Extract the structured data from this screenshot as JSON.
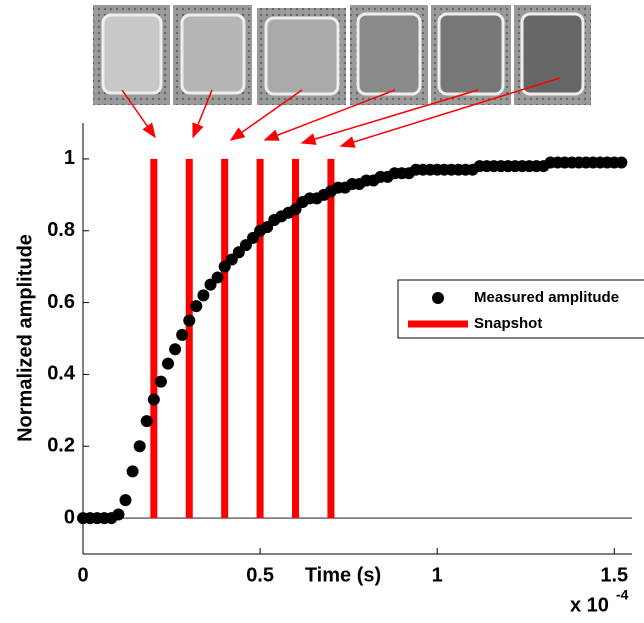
{
  "chart_data": {
    "type": "scatter",
    "ylabel": "Normalized amplitude",
    "xlabel": "Time (s)",
    "x_multiplier": "x 10",
    "x_multiplier_exp": "-4",
    "xlim": [
      0,
      1.55
    ],
    "ylim": [
      -0.1,
      1.1
    ],
    "xticks": [
      0,
      0.5,
      1,
      1.5
    ],
    "yticks": [
      0,
      0.2,
      0.4,
      0.6,
      0.8,
      1
    ],
    "legend": "right",
    "series": [
      {
        "name": "Measured amplitude",
        "type": "scatter",
        "color": "#000000",
        "x": [
          0,
          0.02,
          0.04,
          0.06,
          0.08,
          0.1,
          0.12,
          0.14,
          0.16,
          0.18,
          0.2,
          0.22,
          0.24,
          0.26,
          0.28,
          0.3,
          0.32,
          0.34,
          0.36,
          0.38,
          0.4,
          0.42,
          0.44,
          0.46,
          0.48,
          0.5,
          0.52,
          0.54,
          0.56,
          0.58,
          0.6,
          0.62,
          0.64,
          0.66,
          0.68,
          0.7,
          0.72,
          0.74,
          0.76,
          0.78,
          0.8,
          0.82,
          0.84,
          0.86,
          0.88,
          0.9,
          0.92,
          0.94,
          0.96,
          0.98,
          1,
          1.02,
          1.04,
          1.06,
          1.08,
          1.1,
          1.12,
          1.14,
          1.16,
          1.18,
          1.2,
          1.22,
          1.24,
          1.26,
          1.28,
          1.3,
          1.32,
          1.34,
          1.36,
          1.38,
          1.4,
          1.42,
          1.44,
          1.46,
          1.48,
          1.5,
          1.52
        ],
        "values": [
          0,
          0,
          0,
          0,
          0,
          0.01,
          0.05,
          0.13,
          0.2,
          0.27,
          0.33,
          0.38,
          0.43,
          0.47,
          0.51,
          0.55,
          0.59,
          0.62,
          0.65,
          0.67,
          0.7,
          0.72,
          0.74,
          0.76,
          0.78,
          0.8,
          0.81,
          0.83,
          0.84,
          0.85,
          0.86,
          0.88,
          0.89,
          0.89,
          0.9,
          0.91,
          0.92,
          0.92,
          0.93,
          0.93,
          0.94,
          0.94,
          0.95,
          0.95,
          0.96,
          0.96,
          0.96,
          0.97,
          0.97,
          0.97,
          0.97,
          0.97,
          0.97,
          0.97,
          0.97,
          0.97,
          0.98,
          0.98,
          0.98,
          0.98,
          0.98,
          0.98,
          0.98,
          0.98,
          0.98,
          0.98,
          0.99,
          0.99,
          0.99,
          0.99,
          0.99,
          0.99,
          0.99,
          0.99,
          0.99,
          0.99,
          0.99
        ]
      },
      {
        "name": "Snapshot",
        "type": "vline",
        "color": "#ff0000",
        "x": [
          0.2,
          0.3,
          0.4,
          0.5,
          0.6,
          0.7
        ],
        "values": [
          1,
          1,
          1,
          1,
          1,
          1
        ]
      }
    ]
  }
}
